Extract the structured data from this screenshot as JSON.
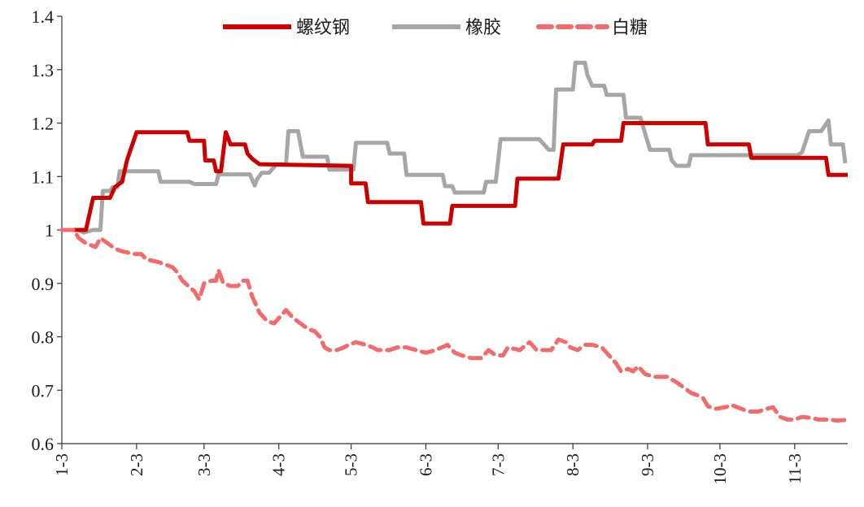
{
  "chart_data": {
    "type": "line",
    "title": "",
    "xlabel": "",
    "ylabel": "",
    "ylim": [
      0.6,
      1.4
    ],
    "yticks": [
      "0.6",
      "0.7",
      "0.8",
      "0.9",
      "1",
      "1.1",
      "1.2",
      "1.3",
      "1.4"
    ],
    "x_ticks": [
      "1-3",
      "2-3",
      "3-3",
      "4-3",
      "5-3",
      "6-3",
      "7-3",
      "8-3",
      "9-3",
      "10-3",
      "11-3"
    ],
    "x_tick_days": [
      0,
      31,
      59,
      90,
      120,
      151,
      181,
      212,
      243,
      273,
      304
    ],
    "x_range_days": [
      0,
      326
    ],
    "legend_position": "top",
    "grid": false,
    "series": [
      {
        "name": "螺纹钢",
        "color": "#cc0000",
        "dash": "solid",
        "points": [
          [
            0,
            1.0
          ],
          [
            10,
            1.0
          ],
          [
            13,
            1.06
          ],
          [
            20,
            1.06
          ],
          [
            22,
            1.08
          ],
          [
            25,
            1.09
          ],
          [
            27,
            1.13
          ],
          [
            31,
            1.183
          ],
          [
            52,
            1.183
          ],
          [
            53,
            1.167
          ],
          [
            59,
            1.167
          ],
          [
            59.5,
            1.13
          ],
          [
            63,
            1.13
          ],
          [
            64,
            1.11
          ],
          [
            66,
            1.11
          ],
          [
            68,
            1.183
          ],
          [
            70,
            1.16
          ],
          [
            76,
            1.16
          ],
          [
            77,
            1.143
          ],
          [
            79,
            1.133
          ],
          [
            82,
            1.123
          ],
          [
            120,
            1.12
          ],
          [
            120,
            1.087
          ],
          [
            126,
            1.087
          ],
          [
            127,
            1.052
          ],
          [
            149,
            1.052
          ],
          [
            150,
            1.012
          ],
          [
            161,
            1.012
          ],
          [
            162,
            1.045
          ],
          [
            188,
            1.045
          ],
          [
            189,
            1.096
          ],
          [
            206,
            1.096
          ],
          [
            208,
            1.16
          ],
          [
            220,
            1.16
          ],
          [
            221,
            1.167
          ],
          [
            232,
            1.167
          ],
          [
            233,
            1.2
          ],
          [
            267,
            1.2
          ],
          [
            268,
            1.16
          ],
          [
            285,
            1.16
          ],
          [
            286,
            1.135
          ],
          [
            317,
            1.135
          ],
          [
            318,
            1.103
          ],
          [
            326,
            1.103
          ]
        ]
      },
      {
        "name": "橡胶",
        "color": "#a6a6a6",
        "dash": "solid",
        "points": [
          [
            0,
            1.0
          ],
          [
            7,
            1.0
          ],
          [
            9,
            0.995
          ],
          [
            13,
            1.0
          ],
          [
            16,
            1.0
          ],
          [
            17,
            1.073
          ],
          [
            20,
            1.073
          ],
          [
            21,
            1.08
          ],
          [
            23,
            1.08
          ],
          [
            24,
            1.11
          ],
          [
            40,
            1.11
          ],
          [
            41,
            1.09
          ],
          [
            53,
            1.09
          ],
          [
            55,
            1.086
          ],
          [
            64,
            1.086
          ],
          [
            65,
            1.104
          ],
          [
            78,
            1.104
          ],
          [
            80,
            1.083
          ],
          [
            81,
            1.095
          ],
          [
            83,
            1.107
          ],
          [
            86,
            1.107
          ],
          [
            89,
            1.123
          ],
          [
            93,
            1.123
          ],
          [
            94,
            1.185
          ],
          [
            98,
            1.185
          ],
          [
            99,
            1.16
          ],
          [
            100,
            1.137
          ],
          [
            110,
            1.137
          ],
          [
            111,
            1.113
          ],
          [
            121,
            1.113
          ],
          [
            122,
            1.163
          ],
          [
            135,
            1.163
          ],
          [
            136,
            1.143
          ],
          [
            142,
            1.143
          ],
          [
            143,
            1.103
          ],
          [
            158,
            1.103
          ],
          [
            159,
            1.082
          ],
          [
            162,
            1.082
          ],
          [
            163,
            1.07
          ],
          [
            175,
            1.07
          ],
          [
            176,
            1.09
          ],
          [
            180,
            1.09
          ],
          [
            182,
            1.17
          ],
          [
            198,
            1.17
          ],
          [
            202,
            1.15
          ],
          [
            204,
            1.15
          ],
          [
            205,
            1.263
          ],
          [
            212,
            1.263
          ],
          [
            213,
            1.313
          ],
          [
            217,
            1.313
          ],
          [
            218,
            1.29
          ],
          [
            220,
            1.27
          ],
          [
            225,
            1.27
          ],
          [
            226,
            1.253
          ],
          [
            233,
            1.253
          ],
          [
            234,
            1.21
          ],
          [
            240,
            1.21
          ],
          [
            242,
            1.18
          ],
          [
            244,
            1.15
          ],
          [
            252,
            1.15
          ],
          [
            253,
            1.13
          ],
          [
            255,
            1.12
          ],
          [
            260,
            1.12
          ],
          [
            261,
            1.14
          ],
          [
            305,
            1.14
          ],
          [
            307,
            1.145
          ],
          [
            310,
            1.185
          ],
          [
            315,
            1.185
          ],
          [
            318,
            1.205
          ],
          [
            319,
            1.16
          ],
          [
            324,
            1.16
          ],
          [
            325,
            1.125
          ]
        ]
      },
      {
        "name": "白糖",
        "color": "#f46a6a",
        "dash": "dashed",
        "points": [
          [
            0,
            1.0
          ],
          [
            5,
            1.0
          ],
          [
            7,
            0.985
          ],
          [
            10,
            0.975
          ],
          [
            14,
            0.968
          ],
          [
            16,
            0.985
          ],
          [
            19,
            0.975
          ],
          [
            22,
            0.965
          ],
          [
            25,
            0.96
          ],
          [
            30,
            0.955
          ],
          [
            33,
            0.955
          ],
          [
            35,
            0.945
          ],
          [
            40,
            0.94
          ],
          [
            43,
            0.935
          ],
          [
            46,
            0.93
          ],
          [
            48,
            0.92
          ],
          [
            50,
            0.905
          ],
          [
            55,
            0.885
          ],
          [
            57,
            0.87
          ],
          [
            59,
            0.9
          ],
          [
            62,
            0.905
          ],
          [
            64,
            0.905
          ],
          [
            65,
            0.925
          ],
          [
            67,
            0.9
          ],
          [
            70,
            0.895
          ],
          [
            73,
            0.895
          ],
          [
            75,
            0.905
          ],
          [
            77,
            0.905
          ],
          [
            79,
            0.875
          ],
          [
            82,
            0.845
          ],
          [
            85,
            0.83
          ],
          [
            88,
            0.825
          ],
          [
            91,
            0.84
          ],
          [
            93,
            0.85
          ],
          [
            96,
            0.835
          ],
          [
            99,
            0.825
          ],
          [
            102,
            0.815
          ],
          [
            105,
            0.81
          ],
          [
            107,
            0.8
          ],
          [
            109,
            0.78
          ],
          [
            111,
            0.775
          ],
          [
            114,
            0.775
          ],
          [
            117,
            0.78
          ],
          [
            119,
            0.785
          ],
          [
            122,
            0.79
          ],
          [
            126,
            0.785
          ],
          [
            129,
            0.78
          ],
          [
            131,
            0.775
          ],
          [
            136,
            0.775
          ],
          [
            139,
            0.78
          ],
          [
            143,
            0.78
          ],
          [
            147,
            0.775
          ],
          [
            151,
            0.77
          ],
          [
            155,
            0.775
          ],
          [
            160,
            0.785
          ],
          [
            163,
            0.77
          ],
          [
            166,
            0.765
          ],
          [
            170,
            0.76
          ],
          [
            174,
            0.76
          ],
          [
            177,
            0.775
          ],
          [
            180,
            0.765
          ],
          [
            183,
            0.765
          ],
          [
            185,
            0.78
          ],
          [
            190,
            0.775
          ],
          [
            194,
            0.79
          ],
          [
            197,
            0.775
          ],
          [
            203,
            0.775
          ],
          [
            206,
            0.795
          ],
          [
            209,
            0.79
          ],
          [
            211,
            0.78
          ],
          [
            214,
            0.775
          ],
          [
            217,
            0.785
          ],
          [
            220,
            0.785
          ],
          [
            224,
            0.78
          ],
          [
            227,
            0.765
          ],
          [
            230,
            0.75
          ],
          [
            232,
            0.735
          ],
          [
            235,
            0.74
          ],
          [
            237,
            0.735
          ],
          [
            239,
            0.745
          ],
          [
            242,
            0.73
          ],
          [
            246,
            0.725
          ],
          [
            251,
            0.725
          ],
          [
            255,
            0.715
          ],
          [
            258,
            0.705
          ],
          [
            261,
            0.695
          ],
          [
            264,
            0.69
          ],
          [
            266,
            0.685
          ],
          [
            268,
            0.67
          ],
          [
            271,
            0.665
          ],
          [
            275,
            0.668
          ],
          [
            278,
            0.672
          ],
          [
            282,
            0.665
          ],
          [
            285,
            0.66
          ],
          [
            289,
            0.66
          ],
          [
            292,
            0.665
          ],
          [
            295,
            0.668
          ],
          [
            298,
            0.65
          ],
          [
            301,
            0.645
          ],
          [
            304,
            0.645
          ],
          [
            307,
            0.65
          ],
          [
            311,
            0.648
          ],
          [
            314,
            0.645
          ],
          [
            318,
            0.645
          ],
          [
            322,
            0.643
          ],
          [
            326,
            0.645
          ]
        ]
      }
    ]
  }
}
